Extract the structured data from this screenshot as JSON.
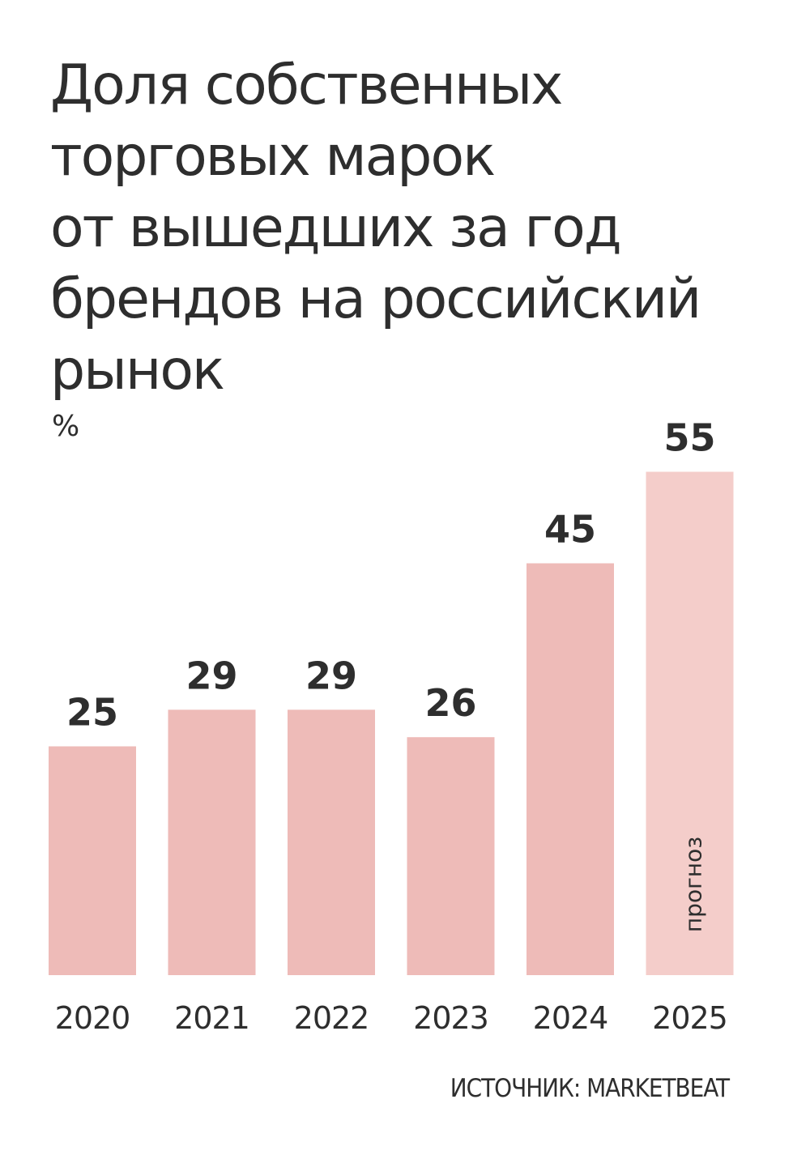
{
  "title_lines": [
    "Доля собственных",
    "торговых марок",
    "от вышедших за год",
    "брендов на российский",
    "рынок"
  ],
  "unit": "%",
  "source": "ИСТОЧНИК: MARKETBEAT",
  "forecast_label": "прогноз",
  "colors": {
    "bar": "#eebbb8",
    "bar_forecast": "#f4cdca",
    "text": "#2e2e2e"
  },
  "chart_data": {
    "type": "bar",
    "categories": [
      "2020",
      "2021",
      "2022",
      "2023",
      "2024",
      "2025"
    ],
    "values": [
      25,
      29,
      29,
      26,
      45,
      55
    ],
    "forecast_categories": [
      "2025"
    ],
    "ylabel": "%",
    "grid": false,
    "axes_visible": false,
    "data_labels": true
  }
}
